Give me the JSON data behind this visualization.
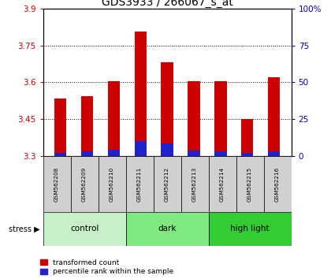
{
  "title": "GDS3933 / 266067_s_at",
  "samples": [
    "GSM562208",
    "GSM562209",
    "GSM562210",
    "GSM562211",
    "GSM562212",
    "GSM562213",
    "GSM562214",
    "GSM562215",
    "GSM562216"
  ],
  "transformed_counts": [
    3.535,
    3.545,
    3.605,
    3.805,
    3.68,
    3.605,
    3.605,
    3.45,
    3.62
  ],
  "percentile_ranks": [
    2.0,
    3.5,
    4.5,
    10.0,
    8.5,
    4.0,
    3.5,
    2.5,
    3.5
  ],
  "y_min": 3.3,
  "y_max": 3.9,
  "y_ticks_left": [
    3.3,
    3.45,
    3.6,
    3.75,
    3.9
  ],
  "y_ticks_right": [
    0,
    25,
    50,
    75,
    100
  ],
  "groups": [
    {
      "label": "control",
      "indices": [
        0,
        1,
        2
      ],
      "color": "#c8f0c8"
    },
    {
      "label": "dark",
      "indices": [
        3,
        4,
        5
      ],
      "color": "#80e880"
    },
    {
      "label": "high light",
      "indices": [
        6,
        7,
        8
      ],
      "color": "#33cc33"
    }
  ],
  "bar_color_red": "#cc0000",
  "bar_color_blue": "#2222cc",
  "bar_width": 0.45,
  "legend_red": "transformed count",
  "legend_blue": "percentile rank within the sample",
  "bg_color": "#ffffff",
  "title_fontsize": 10,
  "left_tick_color": "#cc0000",
  "right_tick_color": "#0000cc"
}
